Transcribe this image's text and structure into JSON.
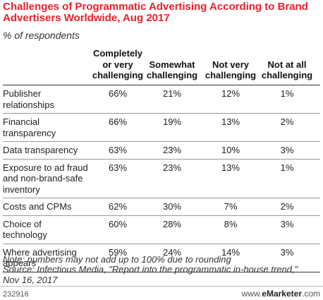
{
  "chart_data": {
    "type": "table",
    "title": "Challenges of Programmatic Advertising According to Brand Advertisers Worldwide, Aug 2017",
    "subtitle": "% of respondents",
    "columns": [
      "Completely or very challenging",
      "Somewhat challenging",
      "Not very challenging",
      "Not at all challenging"
    ],
    "columns_lines": [
      [
        "Completely",
        "or very",
        "challenging"
      ],
      [
        "Somewhat",
        "challenging"
      ],
      [
        "Not very",
        "challenging"
      ],
      [
        "Not at all",
        "challenging"
      ]
    ],
    "rows": [
      {
        "label": "Publisher relationships",
        "label_lines": [
          "Publisher",
          "relationships"
        ],
        "values": [
          "66%",
          "21%",
          "12%",
          "1%"
        ]
      },
      {
        "label": "Financial transparency",
        "label_lines": [
          "Financial",
          "transparency"
        ],
        "values": [
          "66%",
          "19%",
          "13%",
          "2%"
        ]
      },
      {
        "label": "Data transparency",
        "label_lines": [
          "Data transparency"
        ],
        "values": [
          "63%",
          "23%",
          "10%",
          "3%"
        ]
      },
      {
        "label": "Exposure to ad fraud and non-brand-safe inventory",
        "label_lines": [
          "Exposure to ad fraud",
          "and non-brand-safe",
          "inventory"
        ],
        "values": [
          "63%",
          "23%",
          "13%",
          "1%"
        ]
      },
      {
        "label": "Costs and CPMs",
        "label_lines": [
          "Costs and CPMs"
        ],
        "values": [
          "62%",
          "30%",
          "7%",
          "2%"
        ]
      },
      {
        "label": "Choice of technology",
        "label_lines": [
          "Choice of",
          "technology"
        ],
        "values": [
          "60%",
          "28%",
          "8%",
          "3%"
        ]
      },
      {
        "label": "Where advertising appears",
        "label_lines": [
          "Where advertising",
          "appears"
        ],
        "values": [
          "59%",
          "24%",
          "14%",
          "3%"
        ]
      }
    ],
    "note": "Note: numbers may not add up to 100% due to rounding",
    "source_lines": [
      "Source: Infectious Media, \"Report into the programmatic in-house trend,\"",
      "Nov 16, 2017"
    ]
  },
  "footer": {
    "chart_id": "232916",
    "brand_prefix": "www.",
    "brand_name": "eMarketer",
    "brand_suffix": ".com"
  }
}
